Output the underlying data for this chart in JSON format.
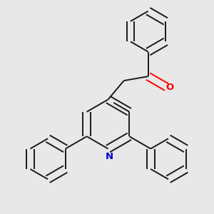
{
  "bg_color": "#e8e8e8",
  "bond_color": "#1a1a1a",
  "nitrogen_color": "#0000cd",
  "oxygen_color": "#ff0000",
  "bond_width": 1.4,
  "dbo": 0.018,
  "figsize": [
    3.0,
    3.0
  ],
  "dpi": 100,
  "xlim": [
    0.0,
    1.0
  ],
  "ylim": [
    0.0,
    1.0
  ]
}
